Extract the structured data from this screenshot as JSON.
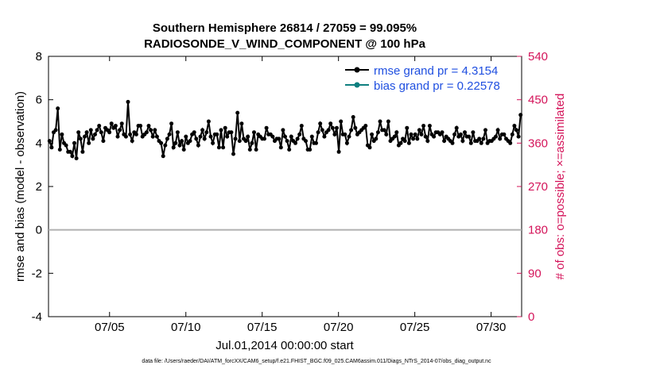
{
  "chart_data": {
    "type": "line",
    "title_line1": "Southern Hemisphere 26814 / 27059 = 99.095%",
    "title_line2": "RADIOSONDE_V_WIND_COMPONENT @ 100 hPa",
    "xlabel": "Jul.01,2014 00:00:00 start",
    "ylabel_left": "rmse and bias (model - observation)",
    "ylabel_right": "# of obs: o=possible; ×=assimilated",
    "footer": "data file: /Users/raeder/DAI/ATM_forcXX/CAM6_setup/f.e21.FHIST_BGC.f09_025.CAM6assim.011/Diags_NTrS_2014-07/obs_diag_output.nc",
    "x_ticks": [
      "07/05",
      "07/10",
      "07/15",
      "07/20",
      "07/25",
      "07/30"
    ],
    "x_tick_days": [
      5,
      10,
      15,
      20,
      25,
      30
    ],
    "xlim_days": [
      1,
      32
    ],
    "y_left_ticks": [
      "-4",
      "-2",
      "0",
      "2",
      "4",
      "6",
      "8"
    ],
    "ylim_left": [
      -4,
      8
    ],
    "y_right_ticks": [
      "0",
      "90",
      "180",
      "270",
      "360",
      "450",
      "540"
    ],
    "ylim_right": [
      0,
      540
    ],
    "zero_line": 0,
    "series": [
      {
        "name": "rmse",
        "legend": "rmse grand pr = 4.3154",
        "color": "#000000",
        "values": [
          4.1,
          3.8,
          4.5,
          4.6,
          5.6,
          3.7,
          4.4,
          4.0,
          3.9,
          3.6,
          3.6,
          3.4,
          4.0,
          3.3,
          4.5,
          4.2,
          3.6,
          4.3,
          4.5,
          4.0,
          4.6,
          4.2,
          4.4,
          4.6,
          4.8,
          4.5,
          4.1,
          4.7,
          4.6,
          4.5,
          4.9,
          4.7,
          4.8,
          4.3,
          4.6,
          4.9,
          4.4,
          4.3,
          5.9,
          4.4,
          4.1,
          4.5,
          4.4,
          4.8,
          4.8,
          4.3,
          4.4,
          4.5,
          4.8,
          4.6,
          4.3,
          4.6,
          4.3,
          4.1,
          4.0,
          3.4,
          3.9,
          4.2,
          4.4,
          4.9,
          3.8,
          4.0,
          4.5,
          3.9,
          4.1,
          3.7,
          4.3,
          4.0,
          4.1,
          4.4,
          4.5,
          4.2,
          3.9,
          4.3,
          4.6,
          4.2,
          4.5,
          5.0,
          4.3,
          4.0,
          4.4,
          4.4,
          3.8,
          4.6,
          3.8,
          4.7,
          4.3,
          4.5,
          4.5,
          3.5,
          4.2,
          5.4,
          4.1,
          4.9,
          4.2,
          4.1,
          4.3,
          3.7,
          4.0,
          4.5,
          3.7,
          4.4,
          4.3,
          4.2,
          4.2,
          4.7,
          4.4,
          4.4,
          4.3,
          4.1,
          4.2,
          4.2,
          3.8,
          4.6,
          4.3,
          4.1,
          3.7,
          4.3,
          4.1,
          4.0,
          4.2,
          4.4,
          4.8,
          4.2,
          4.1,
          3.7,
          3.7,
          4.3,
          4.0,
          4.0,
          4.5,
          4.9,
          4.6,
          4.3,
          4.5,
          4.6,
          4.9,
          4.7,
          4.4,
          4.7,
          3.6,
          5.0,
          4.4,
          4.4,
          4.0,
          4.3,
          4.6,
          5.2,
          4.7,
          4.4,
          4.5,
          4.6,
          4.7,
          4.8,
          3.9,
          3.8,
          4.4,
          4.1,
          4.2,
          4.5,
          5.0,
          4.6,
          4.6,
          4.4,
          5.0,
          4.1,
          4.2,
          4.3,
          4.5,
          3.9,
          4.0,
          4.2,
          4.1,
          4.7,
          4.0,
          4.4,
          4.2,
          4.4,
          4.2,
          4.6,
          4.4,
          4.8,
          4.3,
          4.1,
          4.8,
          4.4,
          4.3,
          4.5,
          4.5,
          4.4,
          4.5,
          4.1,
          4.3,
          4.2,
          4.1,
          4.0,
          4.4,
          4.7,
          4.3,
          4.4,
          4.1,
          4.5,
          4.3,
          4.3,
          4.0,
          4.5,
          4.1,
          4.1,
          4.2,
          4.0,
          4.2,
          4.6,
          4.0,
          4.1,
          4.1,
          4.2,
          4.3,
          4.6,
          4.2,
          4.4,
          4.4,
          4.2,
          4.1,
          4.0,
          4.4,
          4.8,
          4.6,
          4.3,
          5.3
        ],
        "values_note": "approximate"
      },
      {
        "name": "bias",
        "legend": "bias grand pr = 0.22578",
        "color": "#0f7f7f",
        "values_note": "approximate"
      }
    ]
  }
}
